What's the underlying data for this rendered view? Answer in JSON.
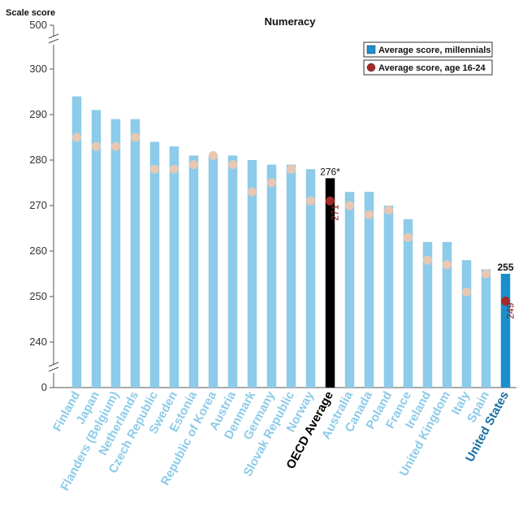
{
  "chart_data": {
    "type": "bar",
    "title": "Numeracy",
    "ylabel": "Scale score",
    "ylim": [
      235,
      305
    ],
    "y_break": {
      "axis_top_label": "500",
      "axis_bottom_label": "0"
    },
    "yticks": [
      "240",
      "250",
      "260",
      "270",
      "280",
      "290",
      "300"
    ],
    "categories": [
      "Finland",
      "Japan",
      "Flanders (Belgium)",
      "Netherlands",
      "Czech Republic",
      "Sweden",
      "Estonia",
      "Republic of Korea",
      "Austria",
      "Denmark",
      "Germany",
      "Slovak Republic",
      "Norway",
      "OECD Average",
      "Australia",
      "Canada",
      "Poland",
      "France",
      "Ireland",
      "United Kingdom",
      "Italy",
      "Spain",
      "United States"
    ],
    "series": [
      {
        "name": "Average score, millennials",
        "values": [
          294,
          291,
          289,
          289,
          284,
          283,
          281,
          281,
          281,
          280,
          279,
          279,
          278,
          276,
          273,
          273,
          270,
          267,
          262,
          262,
          258,
          256,
          255
        ]
      },
      {
        "name": "Average score, age 16-24",
        "values": [
          285,
          283,
          283,
          285,
          278,
          278,
          279,
          281,
          279,
          273,
          275,
          278,
          271,
          271,
          270,
          268,
          269,
          263,
          258,
          257,
          251,
          255,
          249
        ]
      }
    ],
    "highlight": {
      "OECD Average": "#000000",
      "United States": "#1b8fcc"
    },
    "data_labels": [
      {
        "category": "OECD Average",
        "bar": "276*",
        "dot": "271*"
      },
      {
        "category": "United States",
        "bar": "255",
        "dot": "249"
      }
    ],
    "legend_placement": "top-right",
    "colors": {
      "bar": "#8ccbe9",
      "bar_oecd": "#000000",
      "bar_us": "#1b8fcc",
      "dot": "#e8c8b2",
      "dot_highlight": "#a52a2a",
      "label_default": "#8ccbe9",
      "label_us": "#1a6fa3",
      "dot_label": "#8b1a1a"
    },
    "grid": false
  }
}
